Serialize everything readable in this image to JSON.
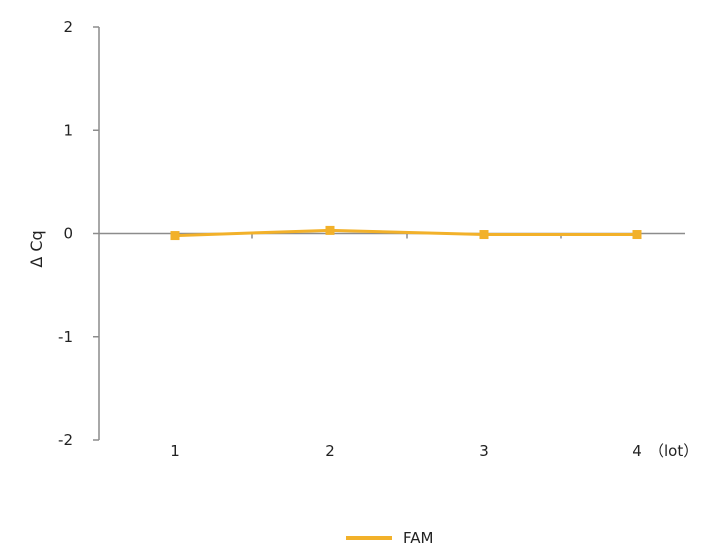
{
  "chart_data": {
    "type": "line",
    "ylabel": "Δ Cq",
    "xlabel": "",
    "x_axis_suffix": "（lot）",
    "categories": [
      "1",
      "2",
      "3",
      "4"
    ],
    "ylim": [
      -2,
      2
    ],
    "yticks": [
      2,
      1,
      0,
      -1,
      -2
    ],
    "grid": false,
    "legend_position": "bottom-center",
    "series": [
      {
        "name": "FAM",
        "values": [
          -0.02,
          0.03,
          -0.01,
          -0.01
        ],
        "color": "#f2b12a"
      }
    ],
    "axis_color": "#8c8c8c"
  }
}
